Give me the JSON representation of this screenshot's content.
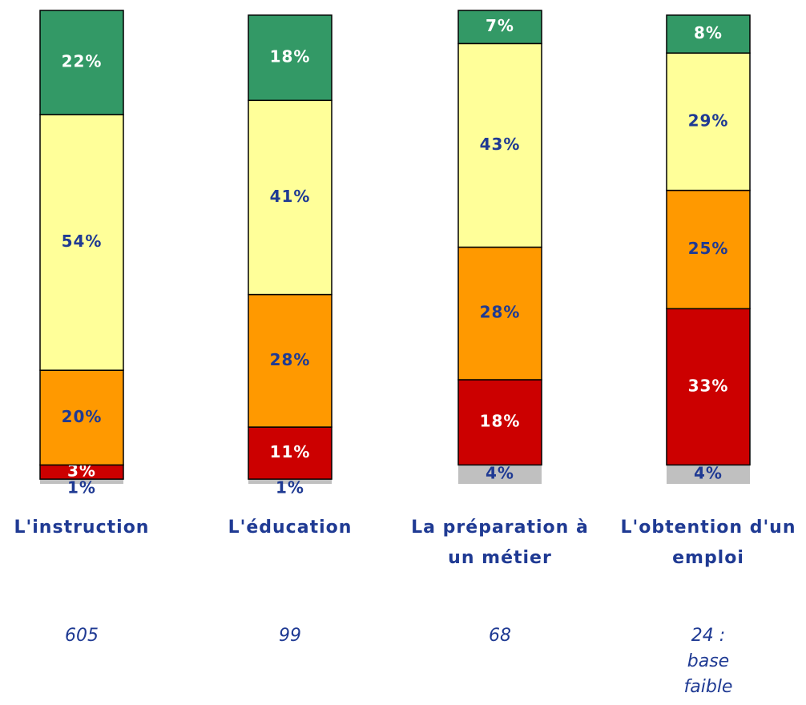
{
  "chart_data": {
    "type": "stacked-bar",
    "categories": [
      "L'instruction",
      "L'éducation",
      "La préparation à un métier",
      "L'obtention d'un emploi"
    ],
    "series": [
      {
        "color": "#c0c0c0",
        "values": [
          1,
          1,
          4,
          4
        ],
        "value_labels": [
          "1%",
          "1%",
          "4%",
          "4%"
        ]
      },
      {
        "color": "#cc0000",
        "values": [
          3,
          11,
          18,
          33
        ],
        "value_labels": [
          "3%",
          "11%",
          "18%",
          "33%"
        ]
      },
      {
        "color": "#ff9900",
        "values": [
          20,
          28,
          28,
          25
        ],
        "value_labels": [
          "20%",
          "28%",
          "28%",
          "25%"
        ]
      },
      {
        "color": "#ffff99",
        "values": [
          54,
          41,
          43,
          29
        ],
        "value_labels": [
          "54%",
          "41%",
          "43%",
          "29%"
        ]
      },
      {
        "color": "#339966",
        "values": [
          22,
          18,
          7,
          8
        ],
        "value_labels": [
          "22%",
          "18%",
          "7%",
          "8%"
        ]
      }
    ],
    "annotations": [
      "605",
      "99",
      "68",
      "24 : base faible"
    ]
  }
}
